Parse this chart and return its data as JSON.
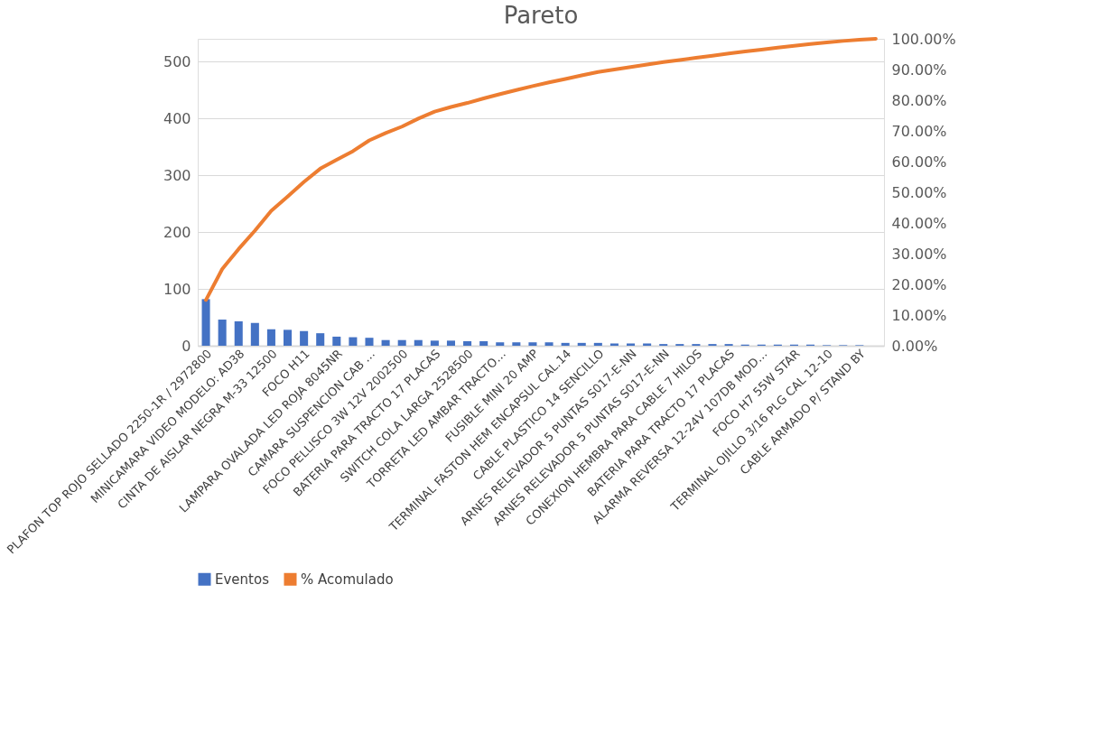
{
  "chart_data": {
    "type": "bar",
    "title": "Pareto",
    "categories": [
      "PLAFON TOP ROJO SELLADO 2250-1R / 2972800",
      null,
      "MINICAMARA VIDEO MODELO: AD38",
      null,
      "CINTA DE AISLAR NEGRA M-33 12500",
      null,
      "FOCO H11",
      null,
      "LAMPARA OVALADA LED ROJA 8045NR",
      null,
      "CAMARA SUSPENCION CAB …",
      null,
      "FOCO PELLISCO 3W 12V 2002500",
      null,
      "BATERIA PARA TRACTO 17 PLACAS",
      null,
      "SWITCH  COLA LARGA 2528500",
      null,
      "TORRETA LED AMBAR TRACTO…",
      null,
      "FUSIBLE MINI 20 AMP",
      null,
      "TERMINAL FASTON HEM ENCAPSUL CAL.14",
      null,
      "CABLE PLASTICO 14 SENCILLO",
      null,
      "ARNES RELEVADOR 5 PUNTAS S017-E-NN",
      null,
      "ARNES RELEVADOR 5 PUNTAS S017-E-NN",
      null,
      "CONEXION HEMBRA PARA CABLE 7 HILOS",
      null,
      "BATERIA PARA TRACTO 17 PLACAS",
      null,
      "ALARMA REVERSA 12-24V 107DB MOD…",
      null,
      "FOCO H7 55W STAR",
      null,
      "TERMINAL OJILLO 3/16 PLG CAL 12-10",
      null,
      "CABLE ARMADO P/ STAND BY",
      null
    ],
    "series": [
      {
        "name": "Eventos",
        "color": "#4472c4",
        "values": [
          82,
          46,
          43,
          40,
          29,
          28,
          26,
          22,
          16,
          15,
          14,
          10,
          10,
          10,
          9,
          9,
          8,
          8,
          6,
          6,
          6,
          6,
          5,
          5,
          5,
          4,
          4,
          4,
          3,
          3,
          3,
          3,
          3,
          2,
          2,
          2,
          2,
          2,
          1,
          1,
          1,
          0
        ]
      },
      {
        "name": "% Acomulado",
        "type": "line",
        "axis": "y2",
        "color": "#ed7d31",
        "values": [
          14.9,
          25,
          31.5,
          37.5,
          44,
          48.6,
          53.4,
          57.7,
          60.6,
          63.4,
          66.9,
          69.3,
          71.4,
          74,
          76.3,
          77.8,
          79.1,
          80.6,
          82,
          83.3,
          84.6,
          85.8,
          86.9,
          88.1,
          89.2,
          90,
          90.8,
          91.6,
          92.4,
          93.1,
          93.8,
          94.5,
          95.2,
          95.9,
          96.5,
          97.1,
          97.7,
          98.3,
          98.8,
          99.3,
          99.7,
          100
        ]
      }
    ],
    "ylim": [
      0,
      540
    ],
    "yticks": [
      0,
      100,
      200,
      300,
      400,
      500
    ],
    "y2lim": [
      0,
      100
    ],
    "y2ticks": [
      {
        "value": 0,
        "label": "0.00%"
      },
      {
        "value": 10,
        "label": "10.00%"
      },
      {
        "value": 20,
        "label": "20.00%"
      },
      {
        "value": 30,
        "label": "30.00%"
      },
      {
        "value": 40,
        "label": "40.00%"
      },
      {
        "value": 50,
        "label": "50.00%"
      },
      {
        "value": 60,
        "label": "60.00%"
      },
      {
        "value": 70,
        "label": "70.00%"
      },
      {
        "value": 80,
        "label": "80.00%"
      },
      {
        "value": 90,
        "label": "90.00%"
      },
      {
        "value": 100,
        "label": "100.00%"
      }
    ],
    "grid": "y",
    "legend": "bottom",
    "marker": "none",
    "line_style": "solid"
  }
}
